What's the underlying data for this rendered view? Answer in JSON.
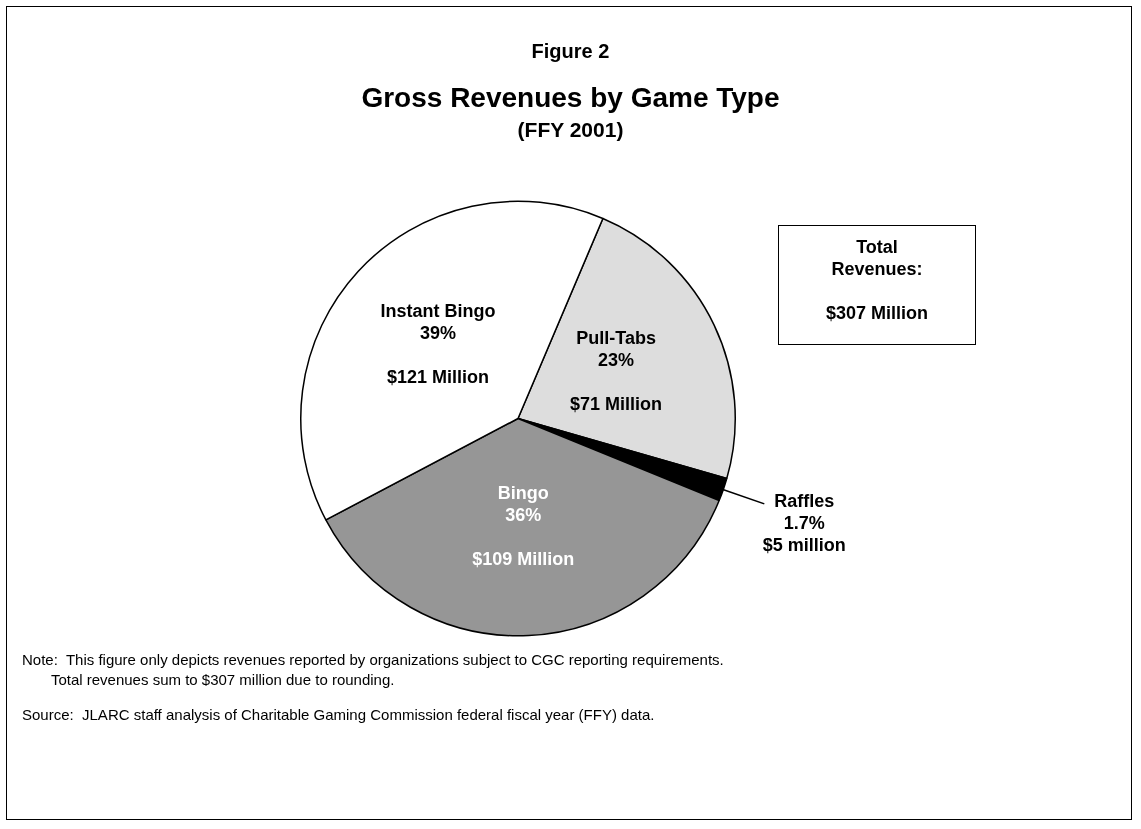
{
  "chart_data": {
    "type": "pie",
    "title": "Gross Revenues by Game Type",
    "subtitle": "(FFY 2001)",
    "categories": [
      "Pull-Tabs",
      "Raffles",
      "Bingo",
      "Instant Bingo"
    ],
    "values": [
      23,
      1.7,
      36,
      39
    ],
    "value_labels": [
      "23%\n\n$71 Million",
      "1.7%\n$5 million",
      "36%\n\n$109 Million",
      "39%\n\n$121 Million"
    ],
    "colors": [
      "#dddddd",
      "#000000",
      "#969696",
      "#ffffff"
    ],
    "annotations": [
      "Figure 2",
      "Total\nRevenues:\n\n$307 Million",
      "Note:  This figure only depicts revenues reported by organizations subject to CGC reporting requirements.\n       Total revenues sum to $307 million due to rounding.",
      "Source:  JLARC staff analysis of Charitable Gaming Commission federal fiscal year (FFY) data."
    ],
    "legend": false
  }
}
